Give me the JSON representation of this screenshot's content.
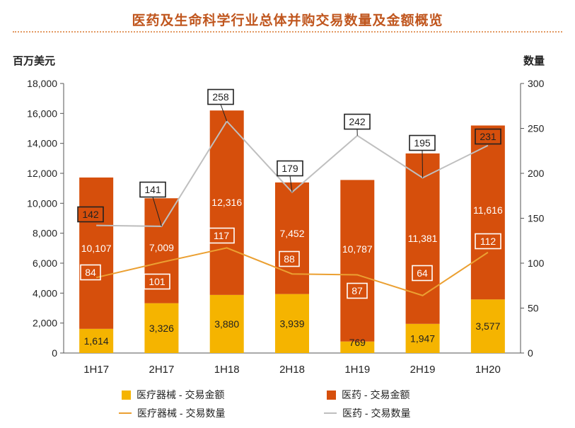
{
  "title": "医药及生命科学行业总体并购交易数量及金额概览",
  "colors": {
    "title": "#c0561e",
    "device_bar": "#f5b400",
    "pharma_bar": "#d64f0c",
    "device_line": "#eba032",
    "pharma_line": "#bfbfbf"
  },
  "chart_data": {
    "type": "bar",
    "title": "医药及生命科学行业总体并购交易数量及金额概览",
    "categories": [
      "1H17",
      "2H17",
      "1H18",
      "2H18",
      "1H19",
      "2H19",
      "1H20"
    ],
    "left_axis": {
      "label": "百万美元",
      "min": 0,
      "max": 18000,
      "step": 2000,
      "ticks": [
        "0",
        "2,000",
        "4,000",
        "6,000",
        "8,000",
        "10,000",
        "12,000",
        "14,000",
        "16,000",
        "18,000"
      ]
    },
    "right_axis": {
      "label": "数量",
      "min": 0,
      "max": 300,
      "step": 50,
      "ticks": [
        "0",
        "50",
        "100",
        "150",
        "200",
        "250",
        "300"
      ]
    },
    "series": [
      {
        "name": "医疗器械 - 交易金额",
        "type": "stacked-bar",
        "axis": "left",
        "values": [
          1614,
          3326,
          3880,
          3939,
          769,
          1947,
          3577
        ],
        "labels": [
          "1,614",
          "3,326",
          "3,880",
          "3,939",
          "769",
          "1,947",
          "3,577"
        ]
      },
      {
        "name": "医药 - 交易金额",
        "type": "stacked-bar",
        "axis": "left",
        "values": [
          10107,
          7009,
          12316,
          7452,
          10787,
          11381,
          11616
        ],
        "labels": [
          "10,107",
          "7,009",
          "12,316",
          "7,452",
          "10,787",
          "11,381",
          "11,616"
        ]
      },
      {
        "name": "医疗器械 - 交易数量",
        "type": "line",
        "axis": "right",
        "values": [
          84,
          101,
          117,
          88,
          87,
          64,
          112
        ],
        "labels": [
          "84",
          "101",
          "117",
          "88",
          "87",
          "64",
          "112"
        ]
      },
      {
        "name": "医药 - 交易数量",
        "type": "line",
        "axis": "right",
        "values": [
          142,
          141,
          258,
          179,
          242,
          195,
          231
        ],
        "labels": [
          "142",
          "141",
          "258",
          "179",
          "242",
          "195",
          "231"
        ]
      }
    ],
    "legend_position": "bottom",
    "grid": false
  },
  "legend": [
    {
      "label": "医疗器械 - 交易金额"
    },
    {
      "label": "医药 - 交易金额"
    },
    {
      "label": "医疗器械 - 交易数量"
    },
    {
      "label": "医药 - 交易数量"
    }
  ]
}
